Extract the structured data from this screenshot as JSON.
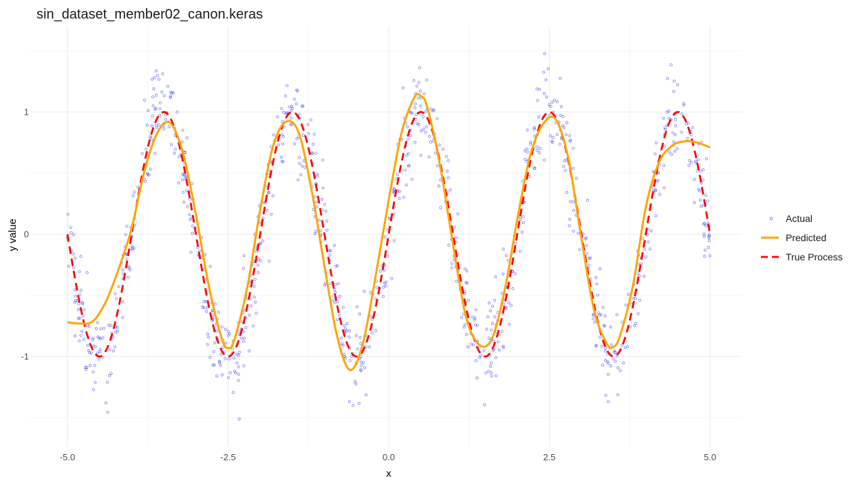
{
  "chart_data": {
    "type": "scatter",
    "title": "sin_dataset_member02_canon.keras",
    "xlabel": "x",
    "ylabel": "y value",
    "xlim": [
      -5.0,
      5.0
    ],
    "ylim": [
      -1.5,
      1.5
    ],
    "x_ticks": [
      -5.0,
      -2.5,
      0.0,
      2.5,
      5.0
    ],
    "x_tick_labels": [
      "-5.0",
      "-2.5",
      "0.0",
      "2.5",
      "5.0"
    ],
    "y_ticks": [
      -1,
      0,
      1
    ],
    "y_tick_labels": [
      "-1",
      "0",
      "1"
    ],
    "grid": true,
    "legend_position": "right",
    "series": [
      {
        "name": "Actual",
        "kind": "points",
        "color": "#0000ff",
        "description": "noisy samples of sin(pi*x) with gaussian noise sd≈0.2",
        "function": "sin(pi*x)",
        "noise_sd": 0.2,
        "n": 1000
      },
      {
        "name": "Predicted",
        "kind": "line",
        "color": "#ffa500",
        "x": [
          -5.0,
          -4.8,
          -4.6,
          -4.4,
          -4.2,
          -4.0,
          -3.8,
          -3.6,
          -3.4,
          -3.2,
          -3.0,
          -2.8,
          -2.6,
          -2.5,
          -2.4,
          -2.2,
          -2.0,
          -1.8,
          -1.6,
          -1.4,
          -1.2,
          -1.0,
          -0.8,
          -0.6,
          -0.4,
          -0.2,
          0.0,
          0.2,
          0.4,
          0.5,
          0.6,
          0.8,
          1.0,
          1.2,
          1.4,
          1.6,
          1.8,
          2.0,
          2.2,
          2.4,
          2.6,
          2.8,
          3.0,
          3.2,
          3.4,
          3.5,
          3.6,
          3.8,
          4.0,
          4.2,
          4.4,
          4.6,
          4.8,
          5.0
        ],
        "y": [
          -0.72,
          -0.73,
          -0.71,
          -0.55,
          -0.28,
          0.05,
          0.52,
          0.83,
          0.91,
          0.66,
          0.16,
          -0.42,
          -0.85,
          -0.93,
          -0.86,
          -0.43,
          0.2,
          0.72,
          0.92,
          0.83,
          0.36,
          -0.26,
          -0.84,
          -1.11,
          -0.89,
          -0.33,
          0.28,
          0.83,
          1.12,
          1.13,
          1.04,
          0.56,
          -0.08,
          -0.67,
          -0.9,
          -0.86,
          -0.47,
          0.12,
          0.64,
          0.9,
          0.94,
          0.61,
          -0.04,
          -0.63,
          -0.9,
          -0.92,
          -0.83,
          -0.42,
          0.22,
          0.58,
          0.72,
          0.76,
          0.75,
          0.71
        ]
      },
      {
        "name": "True Process",
        "kind": "line",
        "dash": "dashed",
        "color": "#ff0000",
        "x_range": [
          -5.0,
          5.0
        ],
        "function": "sin(pi*x)"
      }
    ],
    "legend": [
      "Actual",
      "Predicted",
      "True Process"
    ]
  }
}
